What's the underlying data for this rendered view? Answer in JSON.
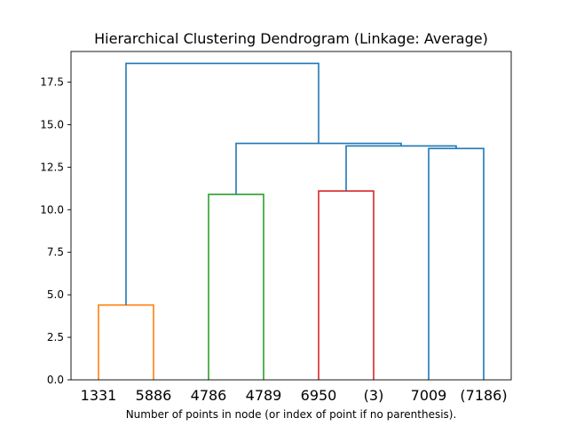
{
  "chart_data": {
    "type": "dendrogram",
    "title": "Hierarchical Clustering Dendrogram (Linkage: Average)",
    "xlabel": "Number of points in node (or index of point if no parenthesis).",
    "ylabel": "",
    "ylim": [
      0,
      19.3
    ],
    "yticks": [
      0.0,
      2.5,
      5.0,
      7.5,
      10.0,
      12.5,
      15.0,
      17.5
    ],
    "ytick_labels": [
      "0.0",
      "2.5",
      "5.0",
      "7.5",
      "10.0",
      "12.5",
      "15.0",
      "17.5"
    ],
    "leaves": [
      "1331",
      "5886",
      "4786",
      "4789",
      "6950",
      "(3)",
      "7009",
      "(7186)"
    ],
    "links": [
      {
        "left": 0,
        "right": 1,
        "left_h": 0,
        "right_h": 0,
        "height": 4.4,
        "color": "#ff7f0e"
      },
      {
        "left": 2,
        "right": 3,
        "left_h": 0,
        "right_h": 0,
        "height": 10.9,
        "color": "#2ca02c"
      },
      {
        "left": 4,
        "right": 5,
        "left_h": 0,
        "right_h": 0,
        "height": 11.1,
        "color": "#d62728"
      },
      {
        "left": 6,
        "right": 7,
        "left_h": 0,
        "right_h": 0,
        "height": 13.6,
        "color": "#1f77b4"
      },
      {
        "left": 4.5,
        "right": 6.5,
        "left_h": 11.1,
        "right_h": 13.6,
        "height": 13.75,
        "color": "#1f77b4"
      },
      {
        "left": 2.5,
        "right": 5.5,
        "left_h": 10.9,
        "right_h": 13.75,
        "height": 13.9,
        "color": "#1f77b4"
      },
      {
        "left": 0.5,
        "right": 4.0,
        "left_h": 4.4,
        "right_h": 13.9,
        "height": 18.6,
        "color": "#1f77b4"
      }
    ]
  }
}
